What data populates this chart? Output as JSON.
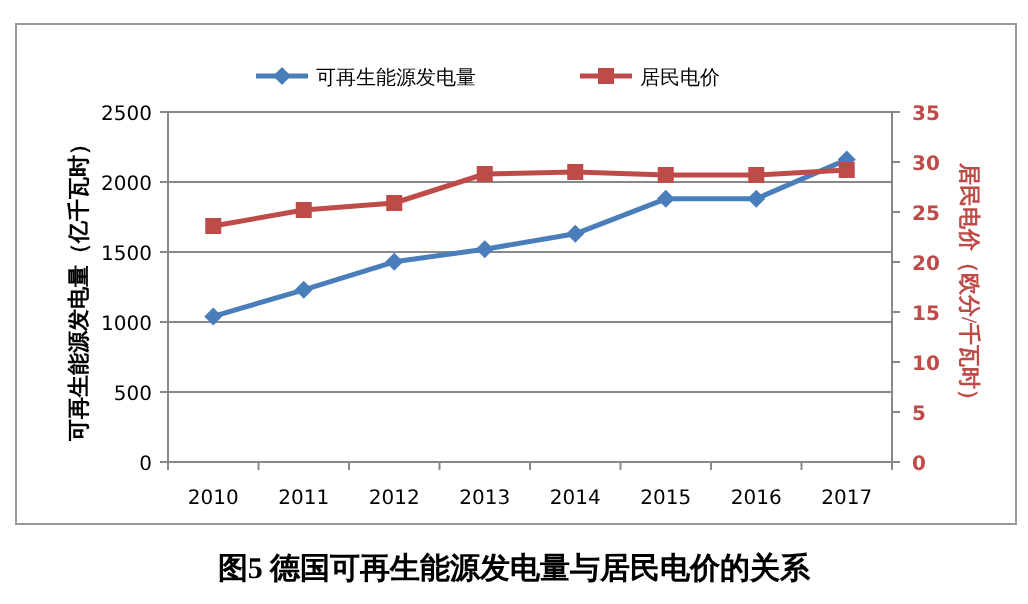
{
  "chart_data": {
    "type": "line",
    "title": "图5 德国可再生能源发电量与居民电价的关系",
    "ylabel": "可再生能源发电量（亿千瓦时）",
    "y2label": "居民电价（欧分/千瓦时）",
    "categories": [
      "2010",
      "2011",
      "2012",
      "2013",
      "2014",
      "2015",
      "2016",
      "2017"
    ],
    "series": [
      {
        "name": "可再生能源发电量",
        "color": "#4a7ebb",
        "marker": "diamond",
        "values": [
          1040,
          1230,
          1430,
          1520,
          1630,
          1880,
          1880,
          2160
        ]
      },
      {
        "name": "居民电价",
        "color": "#be4b48",
        "marker": "square",
        "axis": "y2",
        "values": [
          23.6,
          25.2,
          25.9,
          28.8,
          29.0,
          28.7,
          28.7,
          29.2
        ]
      }
    ],
    "ylim": [
      0,
      2500
    ],
    "yticks": [
      0,
      500,
      1000,
      1500,
      2000,
      2500
    ],
    "y2lim": [
      0,
      35
    ],
    "y2ticks": [
      0,
      5,
      10,
      15,
      20,
      25,
      30,
      35
    ],
    "grid": "y",
    "legend": "top"
  }
}
